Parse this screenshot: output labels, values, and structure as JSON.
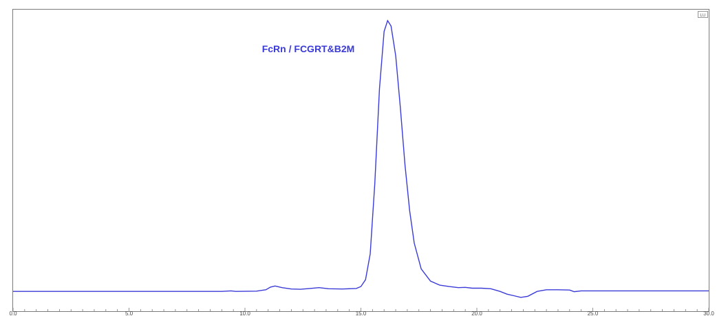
{
  "chart_data": {
    "type": "line",
    "title": "FcRn / FCGRT&B2M",
    "xlabel": "",
    "ylabel": "",
    "xlim": [
      0,
      30
    ],
    "ylim": [
      0,
      100
    ],
    "grid": false,
    "legend": "none",
    "tick_labels": [
      "0.0",
      "5.0",
      "10.0",
      "15.0",
      "20.0",
      "25.0",
      "30.0"
    ],
    "corner_badge": "LU",
    "series_color": "#3a3ad8",
    "series": [
      {
        "points": [
          [
            0.0,
            0.2
          ],
          [
            3.0,
            0.2
          ],
          [
            6.0,
            0.2
          ],
          [
            9.0,
            0.2
          ],
          [
            9.4,
            0.4
          ],
          [
            9.6,
            0.2
          ],
          [
            10.5,
            0.3
          ],
          [
            10.9,
            0.8
          ],
          [
            11.1,
            1.8
          ],
          [
            11.3,
            2.2
          ],
          [
            11.6,
            1.6
          ],
          [
            12.0,
            1.1
          ],
          [
            12.4,
            1.0
          ],
          [
            12.8,
            1.3
          ],
          [
            13.2,
            1.6
          ],
          [
            13.6,
            1.2
          ],
          [
            14.2,
            1.1
          ],
          [
            14.8,
            1.3
          ],
          [
            15.0,
            2.0
          ],
          [
            15.2,
            4.5
          ],
          [
            15.4,
            14.0
          ],
          [
            15.6,
            40.0
          ],
          [
            15.8,
            75.0
          ],
          [
            16.0,
            96.0
          ],
          [
            16.15,
            100.0
          ],
          [
            16.3,
            98.0
          ],
          [
            16.5,
            87.0
          ],
          [
            16.7,
            68.0
          ],
          [
            16.9,
            47.0
          ],
          [
            17.1,
            30.0
          ],
          [
            17.3,
            18.0
          ],
          [
            17.6,
            8.5
          ],
          [
            18.0,
            4.0
          ],
          [
            18.4,
            2.5
          ],
          [
            18.8,
            2.0
          ],
          [
            19.2,
            1.6
          ],
          [
            19.5,
            1.7
          ],
          [
            19.8,
            1.4
          ],
          [
            20.2,
            1.4
          ],
          [
            20.6,
            1.2
          ],
          [
            21.0,
            0.2
          ],
          [
            21.3,
            -0.8
          ],
          [
            21.6,
            -1.4
          ],
          [
            21.9,
            -2.0
          ],
          [
            22.2,
            -1.6
          ],
          [
            22.6,
            0.2
          ],
          [
            23.0,
            0.8
          ],
          [
            23.5,
            0.8
          ],
          [
            24.0,
            0.7
          ],
          [
            24.2,
            0.1
          ],
          [
            24.5,
            0.4
          ],
          [
            26.0,
            0.4
          ],
          [
            28.0,
            0.4
          ],
          [
            30.0,
            0.4
          ]
        ]
      }
    ]
  }
}
